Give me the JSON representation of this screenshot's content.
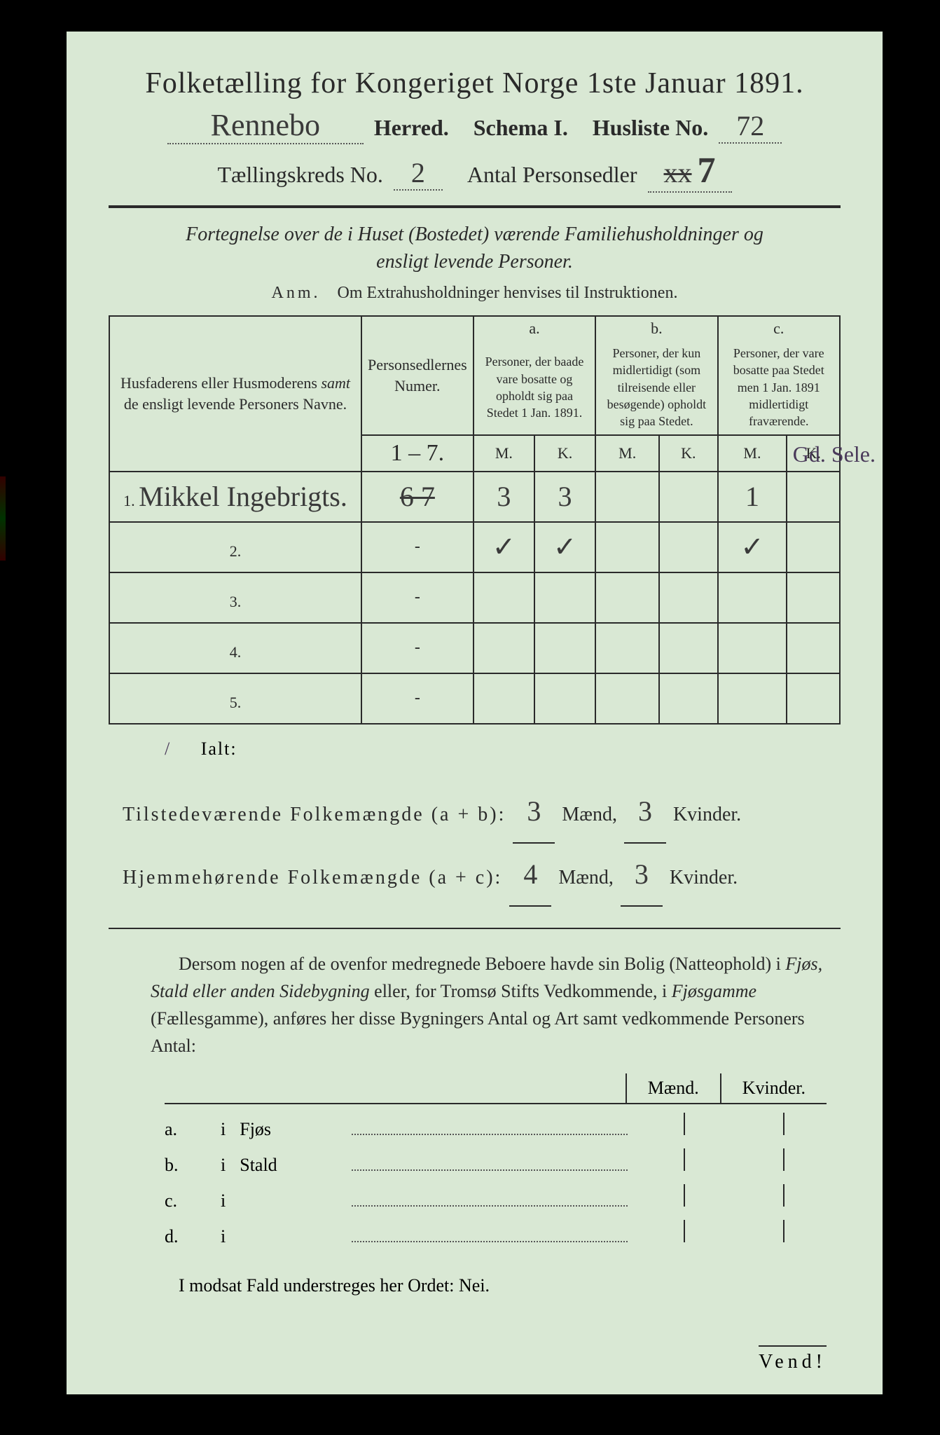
{
  "title": "Folketælling for Kongeriget Norge 1ste Januar 1891.",
  "header": {
    "herred_value": "Rennebo",
    "herred_label": "Herred.",
    "schema_label": "Schema I.",
    "husliste_label": "Husliste No.",
    "husliste_value": "72",
    "kreds_label": "Tællingskreds No.",
    "kreds_value": "2",
    "personsedler_label": "Antal Personsedler",
    "personsedler_value_crossed": "xx",
    "personsedler_value": "7"
  },
  "subtitle": "Fortegnelse over de i Huset (Bostedet) værende Familiehusholdninger og ensligt levende Personer.",
  "anm_prefix": "Anm.",
  "anm_text": "Om Extrahusholdninger henvises til Instruktionen.",
  "table": {
    "col_names": "Husfaderens eller Husmoderens samt de ensligt levende Personers Navne.",
    "col_num": "Personsedlernes Numer.",
    "col_a_label": "a.",
    "col_a": "Personer, der baade vare bosatte og opholdt sig paa Stedet 1 Jan. 1891.",
    "col_b_label": "b.",
    "col_b": "Personer, der kun midlertidigt (som tilreisende eller besøgende) opholdt sig paa Stedet.",
    "col_c_label": "c.",
    "col_c": "Personer, der vare bosatte paa Stedet men 1 Jan. 1891 midlertidigt fraværende.",
    "mk_m": "M.",
    "mk_k": "K.",
    "numer_written": "1 – 7.",
    "rows": [
      {
        "n": "1.",
        "name": "Mikkel Ingebrigts.",
        "num": "6 7",
        "am": "3",
        "ak": "3",
        "bm": "",
        "bk": "",
        "cm": "1",
        "ck": ""
      },
      {
        "n": "2.",
        "name": "",
        "num": "-",
        "am": "✓",
        "ak": "✓",
        "bm": "",
        "bk": "",
        "cm": "✓",
        "ck": ""
      },
      {
        "n": "3.",
        "name": "",
        "num": "-",
        "am": "",
        "ak": "",
        "bm": "",
        "bk": "",
        "cm": "",
        "ck": ""
      },
      {
        "n": "4.",
        "name": "",
        "num": "-",
        "am": "",
        "ak": "",
        "bm": "",
        "bk": "",
        "cm": "",
        "ck": ""
      },
      {
        "n": "5.",
        "name": "",
        "num": "-",
        "am": "",
        "ak": "",
        "bm": "",
        "bk": "",
        "cm": "",
        "ck": ""
      }
    ]
  },
  "side_note": "Gd. Sele.",
  "ialt": "Ialt:",
  "totals": {
    "line1_label": "Tilstedeværende Folkemængde (a + b):",
    "line1_m": "3",
    "line1_k": "3",
    "line2_label": "Hjemmehørende Folkemængde (a + c):",
    "line2_m": "4",
    "line2_k": "3",
    "maend": "Mænd,",
    "kvinder": "Kvinder."
  },
  "paragraph": "Dersom nogen af de ovenfor medregnede Beboere havde sin Bolig (Natteophold) i Fjøs, Stald eller anden Sidebygning eller, for Tromsø Stifts Vedkommende, i Fjøsgamme (Fællesgamme), anføres her disse Bygningers Antal og Art samt vedkommende Personers Antal:",
  "buildings": {
    "h_maend": "Mænd.",
    "h_kvinder": "Kvinder.",
    "rows": [
      {
        "a": "a.",
        "i": "i",
        "label": "Fjøs"
      },
      {
        "a": "b.",
        "i": "i",
        "label": "Stald"
      },
      {
        "a": "c.",
        "i": "i",
        "label": ""
      },
      {
        "a": "d.",
        "i": "i",
        "label": ""
      }
    ]
  },
  "nei": "I modsat Fald understreges her Ordet: Nei.",
  "vend": "Vend!",
  "colors": {
    "page_bg": "#d9e8d4",
    "text": "#2a2a2a",
    "handwriting": "#3a3a3a",
    "border": "#2a2a2a"
  }
}
